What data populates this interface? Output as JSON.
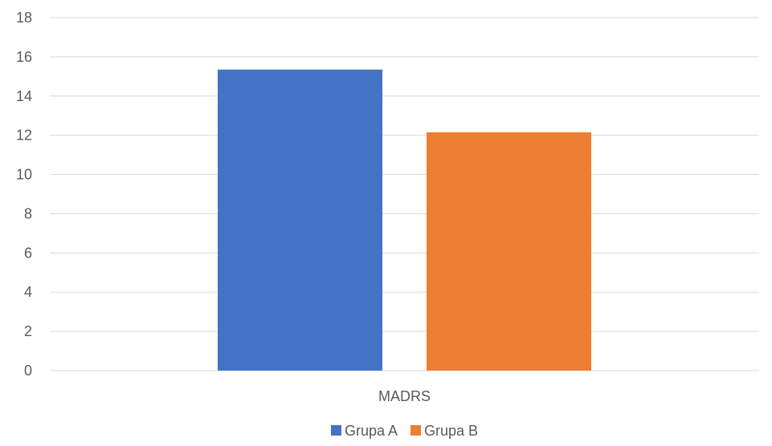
{
  "chart_data": {
    "type": "bar",
    "categories": [
      "MADRS"
    ],
    "series": [
      {
        "name": "Grupa A",
        "values": [
          15.35
        ],
        "color": "#4472C4"
      },
      {
        "name": "Grupa B",
        "values": [
          12.15
        ],
        "color": "#ED7D31"
      }
    ],
    "ylim": [
      0,
      18
    ],
    "yticks": [
      0,
      2,
      4,
      6,
      8,
      10,
      12,
      14,
      16,
      18
    ],
    "grid": true,
    "legend": "bottom"
  }
}
